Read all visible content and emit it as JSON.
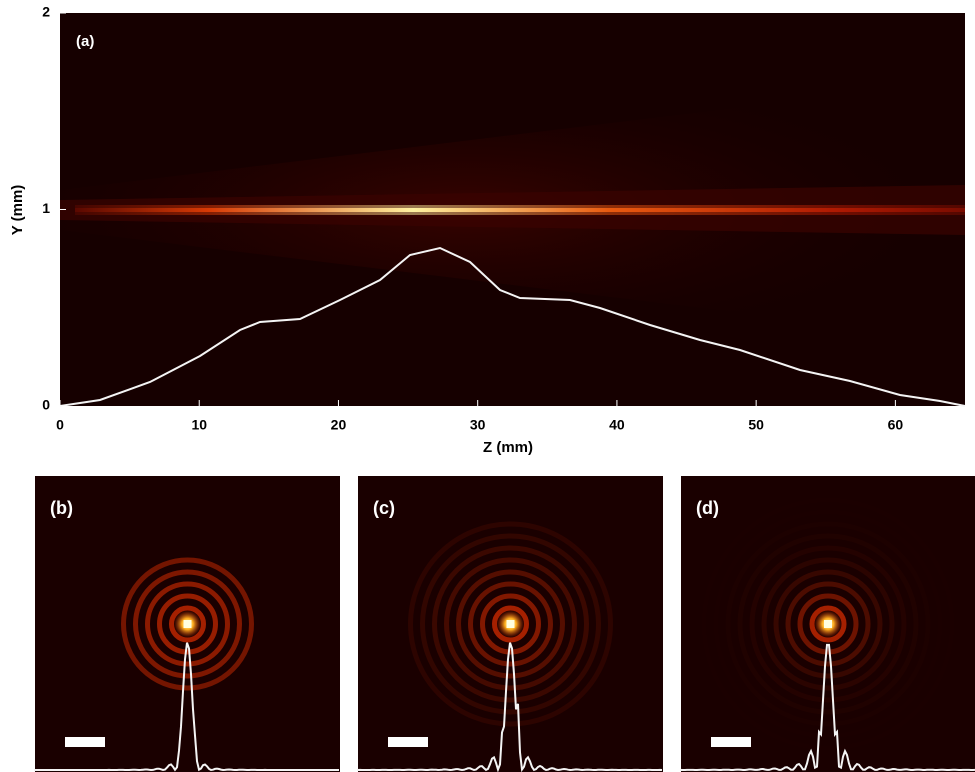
{
  "figure": {
    "panel_a": {
      "label": "(a)",
      "xlabel": "Z (mm)",
      "ylabel": "Y (mm)",
      "xlim": [
        0,
        65
      ],
      "xticks": [
        0,
        10,
        20,
        30,
        40,
        50,
        60
      ],
      "ylim": [
        0,
        2
      ],
      "yticks": [
        0,
        1,
        2
      ]
    },
    "panels": [
      {
        "label": "(b)"
      },
      {
        "label": "(c)"
      },
      {
        "label": "(d)"
      }
    ]
  }
}
